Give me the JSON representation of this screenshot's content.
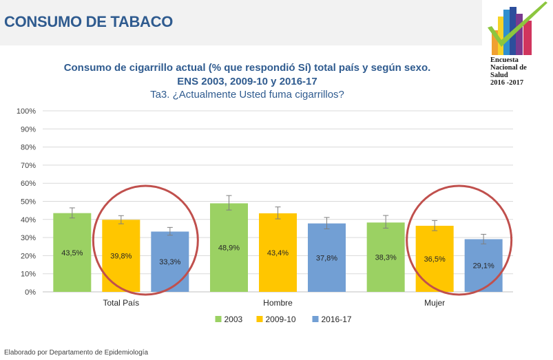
{
  "header": {
    "title": "CONSUMO DE TABACO"
  },
  "logo": {
    "line1": "Encuesta",
    "line2": "Nacional de",
    "line3": "Salud",
    "line4": "2016 -2017",
    "bar_colors": [
      "#f0a030",
      "#f5d328",
      "#2e8fcf",
      "#2d4e9c",
      "#7a3a8f",
      "#d0355e"
    ],
    "check_color": "#8cc63f"
  },
  "chart_data": {
    "type": "bar",
    "title_line1": "Consumo de cigarrillo actual (% que respondió Sí) total país y según sexo.",
    "title_line2": "ENS 2003, 2009-10 y 2016-17",
    "subtitle": "Ta3. ¿Actualmente Usted fuma cigarrillos?",
    "categories": [
      "Total País",
      "Hombre",
      "Mujer"
    ],
    "series": [
      {
        "name": "2003",
        "color": "#9bd163",
        "values": [
          43.5,
          48.9,
          38.3
        ],
        "labels": [
          "43,5%",
          "48,9%",
          "38,3%"
        ],
        "err_low": [
          40.8,
          45.2,
          35.2
        ],
        "err_high": [
          46.4,
          53.2,
          42.2
        ]
      },
      {
        "name": "2009-10",
        "color": "#ffc600",
        "values": [
          39.8,
          43.4,
          36.5
        ],
        "labels": [
          "39,8%",
          "43,4%",
          "36,5%"
        ],
        "err_low": [
          37.6,
          40.3,
          33.8
        ],
        "err_high": [
          42.1,
          46.9,
          39.4
        ]
      },
      {
        "name": "2016-17",
        "color": "#729fd4",
        "values": [
          33.3,
          37.8,
          29.1
        ],
        "labels": [
          "33,3%",
          "37,8%",
          "29,1%"
        ],
        "err_low": [
          31.3,
          34.8,
          26.5
        ],
        "err_high": [
          35.6,
          41.1,
          31.8
        ]
      }
    ],
    "ylim": [
      0,
      100
    ],
    "yticks": [
      "0%",
      "10%",
      "20%",
      "30%",
      "40%",
      "50%",
      "60%",
      "70%",
      "80%",
      "90%",
      "100%"
    ],
    "grid": true,
    "legend_position": "bottom",
    "highlight_color": "#c0504d",
    "highlight_groups": [
      "Total País",
      "Mujer"
    ]
  },
  "footer": {
    "text": "Elaborado por Departamento de Epidemiología"
  }
}
